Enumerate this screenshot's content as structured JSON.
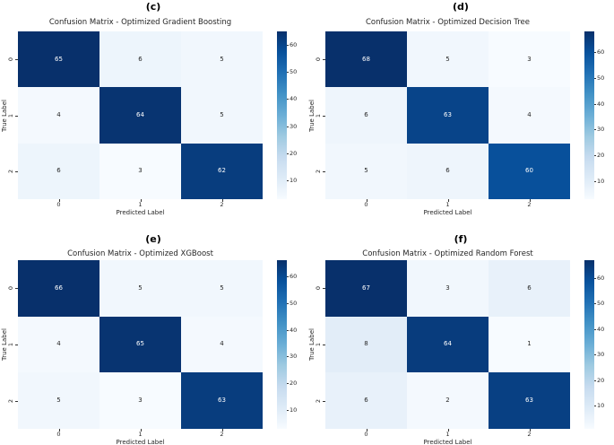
{
  "figure": {
    "background": "#ffffff",
    "text_color": "#262626",
    "annotation_light_color": "#ffffff",
    "annotation_dark_color": "#262626",
    "colormap_name": "Blues",
    "colormap_stops": [
      "#f7fbff",
      "#deebf7",
      "#c6dbef",
      "#9ecae1",
      "#6baed6",
      "#4292c6",
      "#2171b5",
      "#08519c",
      "#08306b"
    ]
  },
  "chart_data": [
    {
      "type": "heatmap",
      "panel_label": "(c)",
      "title": "Confusion Matrix - Optimized Gradient Boosting",
      "xlabel": "Predicted Label",
      "ylabel": "True Label",
      "x_tick_labels": [
        "0",
        "1",
        "2"
      ],
      "y_tick_labels": [
        "0",
        "1",
        "2"
      ],
      "rows": [
        [
          65,
          6,
          5
        ],
        [
          4,
          64,
          5
        ],
        [
          6,
          3,
          62
        ]
      ],
      "colorbar_ticks": [
        "10",
        "20",
        "30",
        "40",
        "50",
        "60"
      ],
      "colormap": "Blues",
      "grid": false,
      "legend_position": "right-colorbar"
    },
    {
      "type": "heatmap",
      "panel_label": "(d)",
      "title": "Confusion Matrix - Optimized Decision Tree",
      "xlabel": "Predicted Label",
      "ylabel": "True Label",
      "x_tick_labels": [
        "0",
        "1",
        "2"
      ],
      "y_tick_labels": [
        "0",
        "1",
        "2"
      ],
      "rows": [
        [
          68,
          5,
          3
        ],
        [
          6,
          63,
          4
        ],
        [
          5,
          6,
          60
        ]
      ],
      "colorbar_ticks": [
        "10",
        "20",
        "30",
        "40",
        "50",
        "60"
      ],
      "colormap": "Blues",
      "grid": false,
      "legend_position": "right-colorbar"
    },
    {
      "type": "heatmap",
      "panel_label": "(e)",
      "title": "Confusion Matrix - Optimized XGBoost",
      "xlabel": "Predicted Label",
      "ylabel": "True Label",
      "x_tick_labels": [
        "0",
        "1",
        "2"
      ],
      "y_tick_labels": [
        "0",
        "1",
        "2"
      ],
      "rows": [
        [
          66,
          5,
          5
        ],
        [
          4,
          65,
          4
        ],
        [
          5,
          3,
          63
        ]
      ],
      "colorbar_ticks": [
        "10",
        "20",
        "30",
        "40",
        "50",
        "60"
      ],
      "colormap": "Blues",
      "grid": false,
      "legend_position": "right-colorbar"
    },
    {
      "type": "heatmap",
      "panel_label": "(f)",
      "title": "Confusion Matrix - Optimized Random Forest",
      "xlabel": "Predicted Label",
      "ylabel": "True Label",
      "x_tick_labels": [
        "0",
        "1",
        "2"
      ],
      "y_tick_labels": [
        "0",
        "1",
        "2"
      ],
      "rows": [
        [
          67,
          3,
          6
        ],
        [
          8,
          64,
          1
        ],
        [
          6,
          2,
          63
        ]
      ],
      "colorbar_ticks": [
        "10",
        "20",
        "30",
        "40",
        "50",
        "60"
      ],
      "colormap": "Blues",
      "grid": false,
      "legend_position": "right-colorbar"
    }
  ]
}
